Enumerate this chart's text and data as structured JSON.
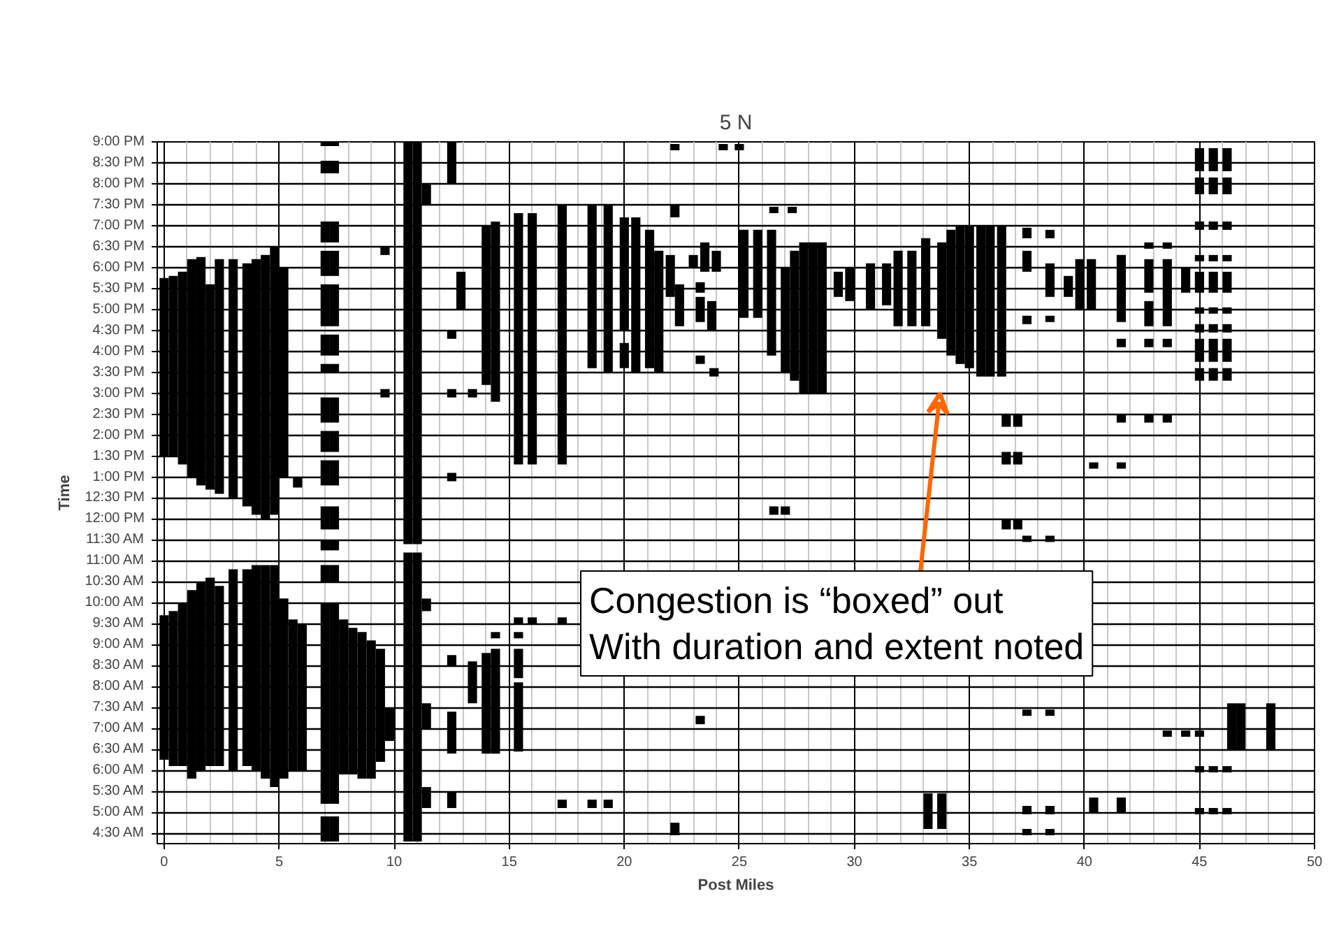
{
  "chart_data": {
    "type": "bar",
    "title": "5 N",
    "xlabel": "Post Miles",
    "ylabel": "Time",
    "xlim": [
      -0.3,
      50
    ],
    "xticks": [
      0,
      5,
      10,
      15,
      20,
      25,
      30,
      35,
      40,
      45,
      50
    ],
    "ylim": [
      4.25,
      21
    ],
    "yticks": [
      {
        "value": 4.5,
        "label": "4:30 AM"
      },
      {
        "value": 5,
        "label": "5:00 AM"
      },
      {
        "value": 5.5,
        "label": "5:30 AM"
      },
      {
        "value": 6,
        "label": "6:00 AM"
      },
      {
        "value": 6.5,
        "label": "6:30 AM"
      },
      {
        "value": 7,
        "label": "7:00 AM"
      },
      {
        "value": 7.5,
        "label": "7:30 AM"
      },
      {
        "value": 8,
        "label": "8:00 AM"
      },
      {
        "value": 8.5,
        "label": "8:30 AM"
      },
      {
        "value": 9,
        "label": "9:00 AM"
      },
      {
        "value": 9.5,
        "label": "9:30 AM"
      },
      {
        "value": 10,
        "label": "10:00 AM"
      },
      {
        "value": 10.5,
        "label": "10:30 AM"
      },
      {
        "value": 11,
        "label": "11:00 AM"
      },
      {
        "value": 11.5,
        "label": "11:30 AM"
      },
      {
        "value": 12,
        "label": "12:00 PM"
      },
      {
        "value": 12.5,
        "label": "12:30 PM"
      },
      {
        "value": 13,
        "label": "1:00 PM"
      },
      {
        "value": 13.5,
        "label": "1:30 PM"
      },
      {
        "value": 14,
        "label": "2:00 PM"
      },
      {
        "value": 14.5,
        "label": "2:30 PM"
      },
      {
        "value": 15,
        "label": "3:00 PM"
      },
      {
        "value": 15.5,
        "label": "3:30 PM"
      },
      {
        "value": 16,
        "label": "4:00 PM"
      },
      {
        "value": 16.5,
        "label": "4:30 PM"
      },
      {
        "value": 17,
        "label": "5:00 PM"
      },
      {
        "value": 17.5,
        "label": "5:30 PM"
      },
      {
        "value": 18,
        "label": "6:00 PM"
      },
      {
        "value": 18.5,
        "label": "6:30 PM"
      },
      {
        "value": 19,
        "label": "7:00 PM"
      },
      {
        "value": 19.5,
        "label": "7:30 PM"
      },
      {
        "value": 20,
        "label": "8:00 PM"
      },
      {
        "value": 20.5,
        "label": "8:30 PM"
      },
      {
        "value": 21,
        "label": "9:00 PM"
      }
    ],
    "grid": true,
    "color": "#000000",
    "series": [
      {
        "x": [
          0.0,
          0.4,
          0.8,
          1.2,
          1.6,
          2.0,
          2.4,
          3.0,
          3.6,
          4.0,
          4.4,
          4.8,
          5.2,
          5.6,
          5.8,
          6.0,
          7.0,
          7.4,
          7.8,
          8.2,
          8.6,
          9.0,
          9.4,
          9.6,
          9.8,
          10.6,
          11.0,
          11.4,
          12.5,
          12.9,
          13.4,
          14.0,
          14.4,
          15.4,
          16.0,
          17.3,
          18.6,
          19.3,
          20.0,
          20.5,
          21.1,
          21.5,
          22.0,
          22.2,
          22.4,
          23.0,
          23.3,
          23.5,
          23.8,
          23.9,
          24.0,
          24.3,
          25.0,
          25.2,
          25.8,
          26.4,
          26.5,
          27.0,
          27.3,
          27.4,
          27.8,
          28.2,
          28.6,
          29.3,
          29.8,
          30.7,
          31.4,
          31.9,
          32.5,
          33.1,
          33.2,
          33.8,
          34.2,
          34.6,
          35.0,
          35.5,
          35.9,
          36.4,
          36.6,
          37.1,
          37.5,
          38.5,
          39.3,
          39.8,
          40.3,
          40.4,
          41.6,
          42.8,
          43.6,
          44.4,
          45.0,
          45.6,
          46.2,
          46.4,
          46.8,
          48.1
        ],
        "base": [
          13.5,
          13.5,
          13.3,
          13.0,
          12.8,
          12.7,
          12.6,
          12.5,
          12.3,
          12.1,
          12.0,
          12.1,
          13.0,
          6.0,
          12.75,
          6.0,
          20.9,
          20.9,
          5.9,
          5.9,
          5.8,
          5.8,
          6.2,
          18.3,
          6.7,
          4.3,
          4.3,
          19.5,
          20.0,
          17.0,
          14.9,
          15.2,
          14.8,
          13.3,
          13.3,
          13.3,
          15.6,
          15.5,
          16.5,
          15.5,
          15.6,
          15.5,
          17.3,
          20.8,
          16.6,
          18.0,
          17.4,
          17.9,
          16.5,
          15.4,
          17.9,
          20.8,
          20.8,
          16.8,
          16.8,
          15.9,
          19.3,
          15.5,
          19.3,
          15.3,
          15.0,
          15.0,
          15.0,
          17.3,
          17.2,
          17.0,
          17.1,
          16.6,
          16.6,
          16.6,
          4.6,
          16.3,
          15.9,
          15.7,
          15.6,
          15.4,
          15.4,
          15.4,
          14.2,
          14.2,
          18.7,
          18.7,
          17.3,
          17.0,
          17.0,
          13.2,
          16.7,
          18.45,
          18.45,
          17.4,
          20.3,
          20.3,
          20.3,
          6.5,
          6.5,
          6.5
        ],
        "values": [
          4.25,
          4.3,
          4.6,
          5.2,
          5.45,
          4.9,
          5.6,
          5.7,
          5.8,
          6.1,
          6.3,
          6.4,
          5.0,
          3.6,
          0.25,
          3.5,
          0.1,
          0.1,
          3.7,
          3.5,
          3.5,
          3.3,
          2.7,
          0.2,
          0.8,
          6.9,
          6.9,
          0.5,
          1.0,
          0.9,
          0.2,
          3.8,
          4.3,
          6.0,
          6.0,
          6.2,
          3.9,
          4.0,
          2.7,
          3.7,
          3.3,
          2.9,
          1.0,
          0.15,
          1.0,
          0.3,
          0.25,
          0.7,
          0.7,
          0.2,
          0.5,
          0.15,
          0.15,
          2.1,
          2.1,
          3.0,
          0.15,
          2.5,
          0.15,
          3.1,
          3.6,
          3.6,
          3.6,
          0.6,
          0.8,
          1.1,
          1.0,
          1.8,
          1.8,
          2.1,
          0.85,
          2.3,
          3.0,
          3.3,
          3.4,
          3.6,
          3.6,
          3.6,
          0.3,
          0.3,
          0.25,
          0.2,
          0.5,
          1.2,
          1.2,
          0.15,
          1.6,
          0.15,
          0.15,
          0.6,
          0.55,
          0.55,
          0.55,
          1.1,
          1.1,
          1.1
        ]
      },
      {
        "x": [
          0.0,
          0.4,
          0.8,
          1.2,
          1.6,
          2.0,
          2.4,
          3.0,
          3.6,
          4.0,
          4.4,
          4.8,
          5.2,
          7.0,
          7.4,
          9.6,
          10.6,
          11.0,
          11.4,
          12.5,
          13.4,
          14.0,
          14.4,
          15.4,
          16.0,
          17.3,
          18.6,
          19.3,
          20.0,
          22.2,
          23.3,
          26.5,
          27.0,
          33.8,
          36.6,
          37.1,
          37.5,
          38.5,
          40.4,
          41.6,
          42.8,
          43.6,
          44.4,
          45.0,
          45.6,
          46.2
        ],
        "base": [
          6.25,
          6.1,
          6.1,
          5.8,
          6.0,
          6.1,
          6.1,
          6.0,
          6.1,
          6.0,
          5.8,
          5.6,
          5.8,
          20.25,
          20.25,
          14.9,
          11.4,
          11.4,
          9.8,
          16.3,
          7.6,
          6.4,
          6.4,
          9.5,
          9.5,
          9.5,
          5.1,
          5.1,
          15.6,
          19.2,
          16.7,
          12.1,
          12.1,
          4.6,
          13.3,
          13.3,
          17.9,
          17.3,
          5.0,
          16.1,
          17.4,
          16.6,
          6.8,
          19.75,
          19.75,
          19.75
        ],
        "values": [
          3.45,
          3.7,
          3.9,
          4.5,
          4.5,
          4.5,
          4.3,
          4.8,
          4.7,
          4.9,
          5.1,
          5.3,
          4.3,
          0.3,
          0.3,
          0.2,
          9.6,
          9.6,
          0.3,
          0.2,
          1.0,
          2.4,
          2.5,
          0.15,
          0.15,
          0.15,
          0.2,
          0.2,
          0.6,
          0.3,
          0.6,
          0.2,
          0.2,
          0.85,
          0.3,
          0.3,
          0.5,
          0.8,
          0.35,
          0.2,
          0.8,
          1.6,
          0.15,
          0.4,
          0.4,
          0.4
        ]
      },
      {
        "x": [
          7.0,
          7.4,
          11.4,
          12.5,
          14.4,
          15.4,
          17.3,
          22.2,
          23.3,
          36.6,
          37.1,
          37.5,
          38.5,
          41.6,
          42.8,
          43.6,
          45.0,
          45.6,
          46.2
        ],
        "base": [
          18.6,
          18.6,
          7.0,
          14.9,
          9.15,
          9.15,
          5.1,
          4.45,
          15.7,
          11.75,
          11.75,
          16.65,
          16.7,
          14.3,
          16.6,
          16.1,
          18.9,
          18.9,
          18.9
        ],
        "values": [
          0.5,
          0.5,
          0.6,
          0.2,
          0.15,
          0.15,
          0.2,
          0.3,
          0.2,
          0.25,
          0.25,
          0.2,
          0.15,
          0.2,
          0.6,
          0.2,
          0.2,
          0.2,
          0.2
        ]
      },
      {
        "x": [
          7.0,
          7.4,
          11.4,
          12.5,
          15.4,
          23.3,
          37.5,
          38.5,
          41.6,
          42.8,
          43.6,
          45.0,
          45.6,
          46.2
        ],
        "base": [
          17.8,
          17.8,
          5.1,
          12.9,
          8.2,
          7.1,
          11.45,
          11.45,
          13.2,
          16.1,
          14.3,
          18.15,
          18.15,
          18.15
        ],
        "values": [
          0.6,
          0.6,
          0.5,
          0.2,
          0.7,
          0.2,
          0.15,
          0.15,
          0.15,
          0.2,
          0.2,
          0.15,
          0.15,
          0.15
        ]
      },
      {
        "x": [
          7.0,
          7.4,
          12.5,
          15.4,
          37.5,
          38.5,
          41.6,
          42.8,
          43.6,
          45.0,
          45.6,
          46.2
        ],
        "base": [
          16.6,
          16.6,
          8.5,
          6.45,
          7.3,
          7.3,
          5.0,
          14.3,
          6.8,
          17.4,
          17.4,
          17.4
        ],
        "values": [
          1.0,
          1.0,
          0.25,
          1.65,
          0.15,
          0.15,
          0.35,
          0.2,
          0.15,
          0.5,
          0.5,
          0.5
        ]
      },
      {
        "x": [
          7.0,
          7.4,
          12.5,
          37.5,
          38.5,
          45.0,
          45.6,
          46.2
        ],
        "base": [
          15.9,
          15.9,
          6.4,
          4.95,
          4.95,
          16.9,
          16.9,
          16.9
        ],
        "values": [
          0.5,
          0.5,
          1.0,
          0.2,
          0.2,
          0.15,
          0.15,
          0.15
        ]
      },
      {
        "x": [
          7.0,
          7.4,
          12.5,
          37.5,
          38.5,
          45.0,
          45.6,
          46.2
        ],
        "base": [
          15.5,
          15.5,
          5.1,
          4.45,
          4.45,
          16.45,
          16.45,
          16.45
        ],
        "values": [
          0.2,
          0.2,
          0.4,
          0.15,
          0.15,
          0.2,
          0.2,
          0.2
        ]
      },
      {
        "x": [
          7.0,
          7.4,
          45.0,
          45.6,
          46.2
        ],
        "base": [
          14.3,
          14.3,
          15.75,
          15.75,
          15.75
        ],
        "values": [
          0.6,
          0.6,
          0.55,
          0.55,
          0.55
        ]
      },
      {
        "x": [
          7.0,
          7.4,
          45.0,
          45.6,
          46.2
        ],
        "base": [
          13.6,
          13.6,
          15.3,
          15.3,
          15.3
        ],
        "values": [
          0.5,
          0.5,
          0.3,
          0.3,
          0.3
        ]
      },
      {
        "x": [
          7.0,
          7.4,
          45.0,
          45.6,
          46.2
        ],
        "base": [
          12.8,
          12.8,
          5.95,
          5.95,
          5.95
        ],
        "values": [
          0.6,
          0.6,
          0.15,
          0.15,
          0.15
        ]
      },
      {
        "x": [
          7.0,
          7.4,
          45.0,
          45.6,
          46.2
        ],
        "base": [
          11.75,
          11.75,
          4.95,
          4.95,
          4.95
        ],
        "values": [
          0.55,
          0.55,
          0.15,
          0.15,
          0.15
        ]
      },
      {
        "x": [
          7.0,
          7.4,
          45.0
        ],
        "base": [
          11.25,
          11.25,
          6.8
        ],
        "values": [
          0.25,
          0.25,
          0.15
        ]
      },
      {
        "x": [
          7.0,
          7.4
        ],
        "base": [
          10.5,
          10.5
        ],
        "values": [
          0.4,
          0.4
        ]
      },
      {
        "x": [
          7.0,
          7.4
        ],
        "base": [
          5.2,
          5.2
        ],
        "values": [
          4.8,
          4.8
        ]
      },
      {
        "x": [
          7.0,
          7.4
        ],
        "base": [
          4.3,
          4.3
        ],
        "values": [
          0.6,
          0.6
        ]
      }
    ],
    "annotations": [
      "Congestion is “boxed” out\nWith duration and extent noted"
    ]
  }
}
